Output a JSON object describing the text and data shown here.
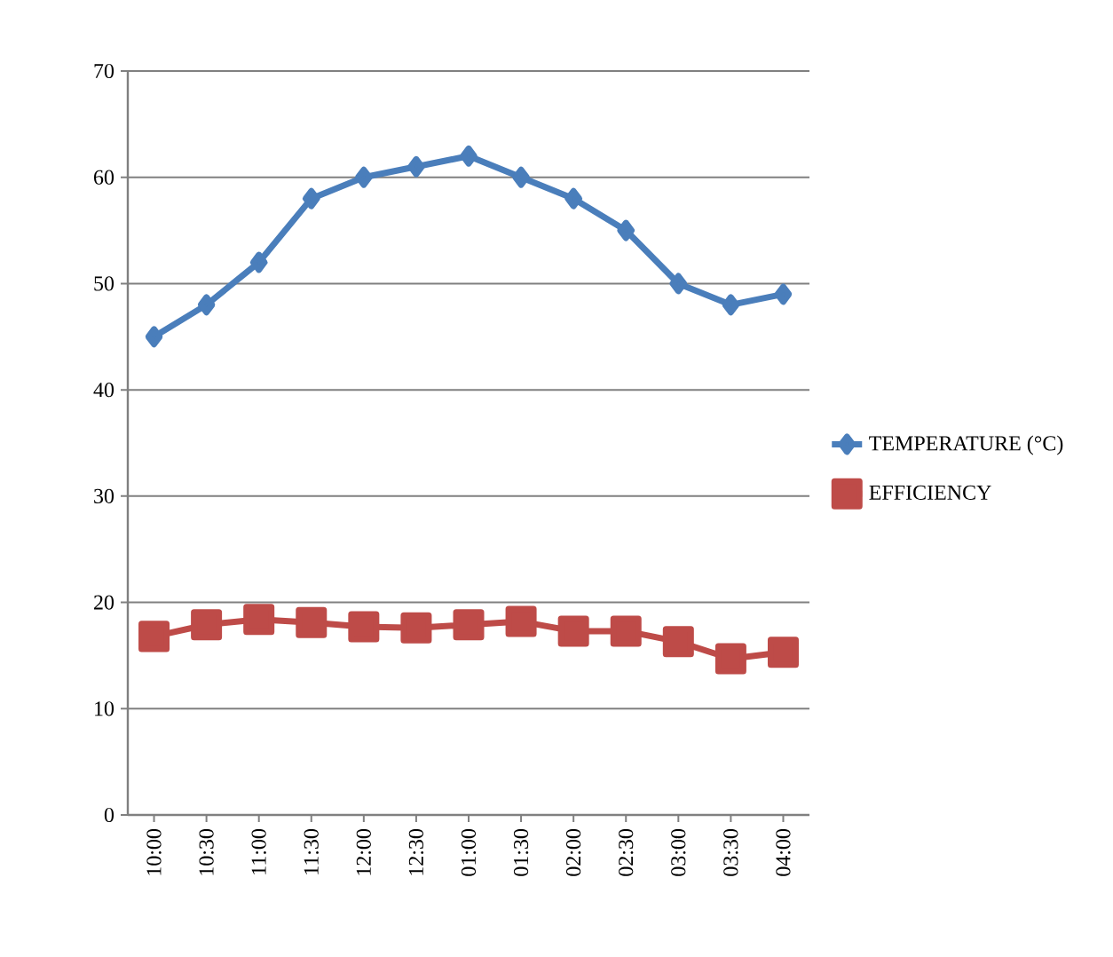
{
  "chart_data": {
    "type": "line",
    "categories": [
      "10:00",
      "10:30",
      "11:00",
      "11:30",
      "12:00",
      "12:30",
      "01:00",
      "01:30",
      "02:00",
      "02:30",
      "03:00",
      "03:30",
      "04:00"
    ],
    "series": [
      {
        "name": "TEMPERATURE (°C)",
        "color": "#4a7ebb",
        "marker": "diamond",
        "values": [
          45,
          48,
          52,
          58,
          60,
          61,
          62,
          60,
          58,
          55,
          50,
          48,
          49
        ]
      },
      {
        "name": "EFFICIENCY",
        "color": "#be4b48",
        "marker": "square",
        "values": [
          16.8,
          17.9,
          18.4,
          18.1,
          17.7,
          17.6,
          17.9,
          18.2,
          17.3,
          17.3,
          16.3,
          14.7,
          15.3
        ]
      }
    ],
    "ylim": [
      0,
      70
    ],
    "yticks": [
      0,
      10,
      20,
      30,
      40,
      50,
      60,
      70
    ],
    "grid": "y",
    "legend": "right"
  }
}
